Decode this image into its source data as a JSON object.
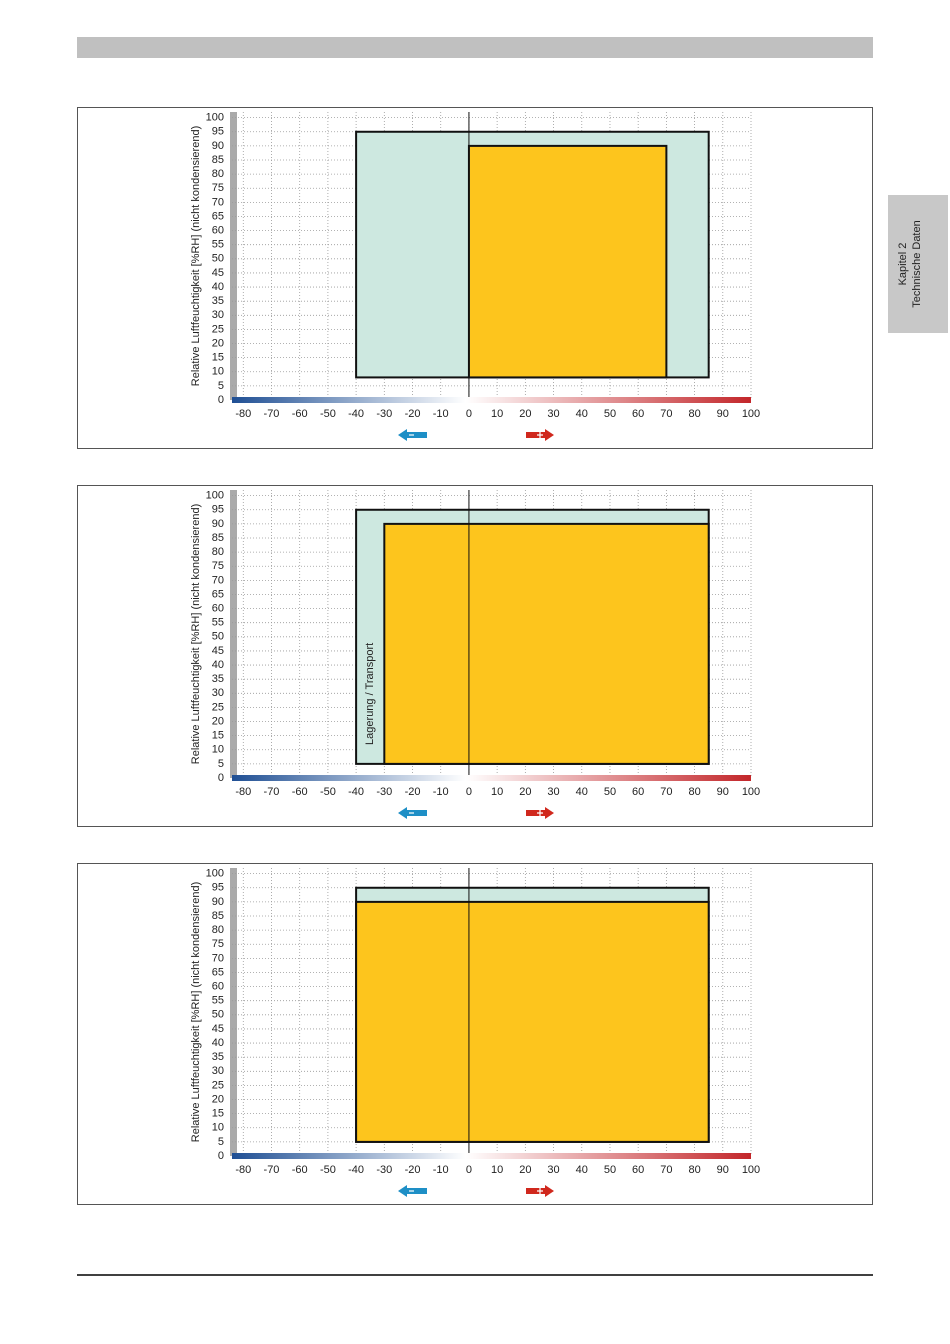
{
  "side_tab": {
    "lines": [
      "Kapitel 2",
      "Technische Daten"
    ]
  },
  "chart_data": [
    {
      "type": "range",
      "ylabel": "Relative Luftfeuchtigkeit  [%RH] (nicht kondensierend)",
      "xlim": [
        -84,
        100
      ],
      "ylim": [
        0,
        102
      ],
      "xticks": [
        -80,
        -70,
        -60,
        -50,
        -40,
        -30,
        -20,
        -10,
        0,
        10,
        20,
        30,
        40,
        50,
        60,
        70,
        80,
        90,
        100
      ],
      "yticks": [
        0,
        5,
        10,
        15,
        20,
        25,
        30,
        35,
        40,
        45,
        50,
        55,
        60,
        65,
        70,
        75,
        80,
        85,
        90,
        95,
        100
      ],
      "grid": true,
      "series": [
        {
          "color": "#cde8e0",
          "x": [
            -40,
            85
          ],
          "y": [
            8,
            95
          ]
        },
        {
          "color": "#fdc51d",
          "x": [
            0,
            70
          ],
          "y": [
            8,
            90
          ]
        }
      ]
    },
    {
      "type": "range",
      "ylabel": "Relative Luftfeuchtigkeit  [%RH] (nicht kondensierend)",
      "xlim": [
        -84,
        100
      ],
      "ylim": [
        0,
        102
      ],
      "xticks": [
        -80,
        -70,
        -60,
        -50,
        -40,
        -30,
        -20,
        -10,
        0,
        10,
        20,
        30,
        40,
        50,
        60,
        70,
        80,
        90,
        100
      ],
      "yticks": [
        0,
        5,
        10,
        15,
        20,
        25,
        30,
        35,
        40,
        45,
        50,
        55,
        60,
        65,
        70,
        75,
        80,
        85,
        90,
        95,
        100
      ],
      "grid": true,
      "annotations": [
        "Lagerung / Transport"
      ],
      "series": [
        {
          "color": "#cde8e0",
          "x": [
            -40,
            85
          ],
          "y": [
            5,
            95
          ]
        },
        {
          "color": "#fdc51d",
          "x": [
            -30,
            85
          ],
          "y": [
            5,
            90
          ]
        }
      ]
    },
    {
      "type": "range",
      "ylabel": "Relative Luftfeuchtigkeit  [%RH] (nicht kondensierend)",
      "xlim": [
        -84,
        100
      ],
      "ylim": [
        0,
        102
      ],
      "xticks": [
        -80,
        -70,
        -60,
        -50,
        -40,
        -30,
        -20,
        -10,
        0,
        10,
        20,
        30,
        40,
        50,
        60,
        70,
        80,
        90,
        100
      ],
      "yticks": [
        0,
        5,
        10,
        15,
        20,
        25,
        30,
        35,
        40,
        45,
        50,
        55,
        60,
        65,
        70,
        75,
        80,
        85,
        90,
        95,
        100
      ],
      "grid": true,
      "series": [
        {
          "color": "#cde8e0",
          "x": [
            -40,
            85
          ],
          "y": [
            5,
            95
          ]
        },
        {
          "color": "#fdc51d",
          "x": [
            -40,
            85
          ],
          "y": [
            5,
            90
          ]
        }
      ]
    }
  ]
}
